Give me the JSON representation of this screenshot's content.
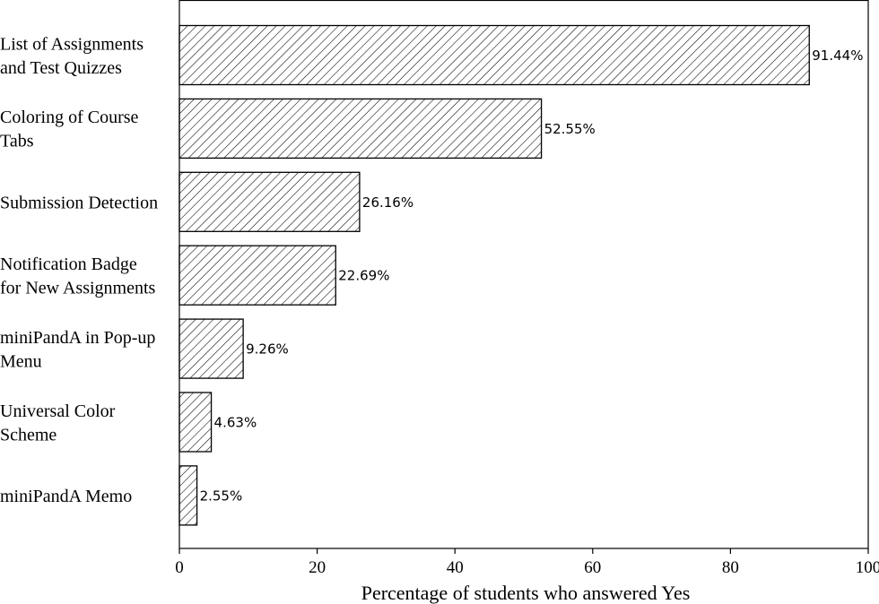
{
  "chart_data": {
    "type": "bar",
    "orientation": "horizontal",
    "title": "",
    "xlabel": "Percentage of students who answered Yes",
    "ylabel": "",
    "xlim": [
      0,
      100
    ],
    "xticks": [
      0,
      20,
      40,
      60,
      80,
      100
    ],
    "grid": false,
    "legend": "none",
    "bar_fill": "hatched",
    "categories": [
      [
        "List of Assignments",
        "and Test Quizzes"
      ],
      [
        "Coloring of Course",
        "Tabs"
      ],
      [
        "Submission Detection"
      ],
      [
        "Notification Badge",
        "for New Assignments"
      ],
      [
        "miniPandA in Pop-up",
        "Menu"
      ],
      [
        "Universal Color",
        "Scheme"
      ],
      [
        "miniPandA Memo"
      ]
    ],
    "values": [
      91.44,
      52.55,
      26.16,
      22.69,
      9.26,
      4.63,
      2.55
    ],
    "value_labels": [
      "91.44%",
      "52.55%",
      "26.16%",
      "22.69%",
      "9.26%",
      "4.63%",
      "2.55%"
    ]
  },
  "colors": {
    "bar_fill": "#ffffff",
    "bar_edge": "#000000",
    "hatch": "#000000",
    "axis": "#000000"
  }
}
